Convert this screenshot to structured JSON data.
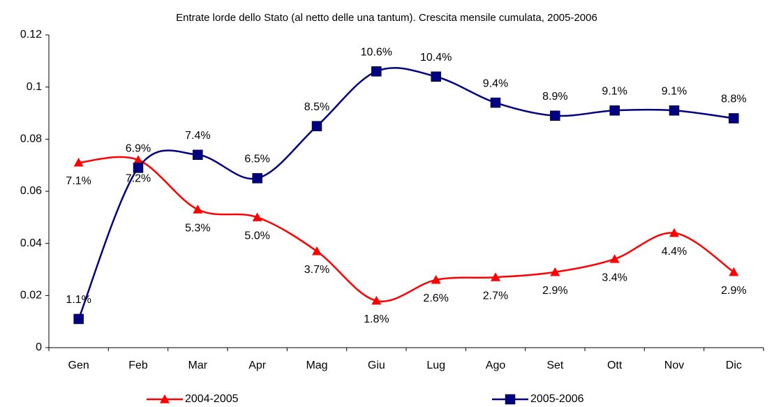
{
  "chart_data": {
    "type": "line",
    "title": "Entrate lorde dello Stato (al netto delle una tantum). Crescita mensile cumulata,  2005-2006",
    "categories": [
      "Gen",
      "Feb",
      "Mar",
      "Apr",
      "Mag",
      "Giu",
      "Lug",
      "Ago",
      "Set",
      "Ott",
      "Nov",
      "Dic"
    ],
    "series": [
      {
        "name": "2004-2005",
        "color": "#ff0000",
        "marker": "triangle",
        "values": [
          0.071,
          0.072,
          0.053,
          0.05,
          0.037,
          0.018,
          0.026,
          0.027,
          0.029,
          0.034,
          0.044,
          0.029
        ],
        "value_labels": [
          "7.1%",
          "7.2%",
          "5.3%",
          "5.0%",
          "3.7%",
          "1.8%",
          "2.6%",
          "2.7%",
          "2.9%",
          "3.4%",
          "4.4%",
          "2.9%"
        ]
      },
      {
        "name": "2005-2006",
        "color": "#000080",
        "marker": "square",
        "values": [
          0.011,
          0.069,
          0.074,
          0.065,
          0.085,
          0.106,
          0.104,
          0.094,
          0.089,
          0.091,
          0.091,
          0.088
        ],
        "value_labels": [
          "1.1%",
          "6.9%",
          "7.4%",
          "6.5%",
          "8.5%",
          "10.6%",
          "10.4%",
          "9.4%",
          "8.9%",
          "9.1%",
          "9.1%",
          "8.8%"
        ]
      }
    ],
    "ylim": [
      0,
      0.12
    ],
    "yticks": [
      0,
      0.02,
      0.04,
      0.06,
      0.08,
      0.1,
      0.12
    ],
    "smooth": true,
    "grid": false,
    "legend": "bottom"
  }
}
